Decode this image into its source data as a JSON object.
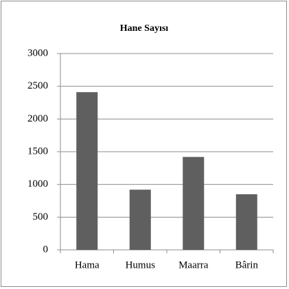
{
  "chart_data": {
    "type": "bar",
    "title": "Hane Sayısı",
    "categories": [
      "Hama",
      "Humus",
      "Maarra",
      "Bârin"
    ],
    "values": [
      2410,
      920,
      1420,
      850
    ],
    "color": "#5f5f5f",
    "ylim": [
      0,
      3000
    ],
    "yticks": [
      0,
      500,
      1000,
      1500,
      2000,
      2500,
      3000
    ],
    "grid": true
  }
}
